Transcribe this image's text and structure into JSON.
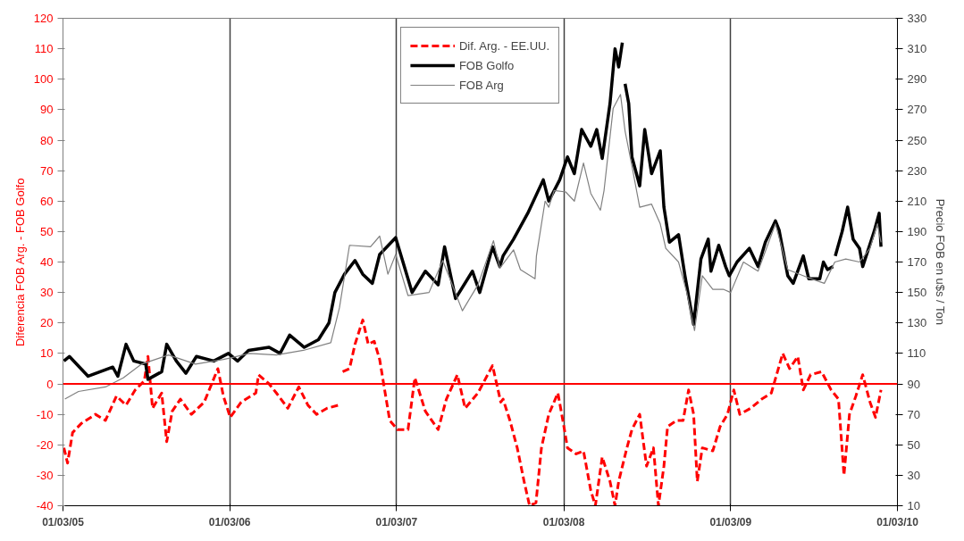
{
  "chart_data": {
    "type": "line",
    "ylabel": "Diferencia FOB Arg. - FOB Golfo",
    "y2label": "Precio FOB en u$s / Ton",
    "xlim": [
      "2005-03-01",
      "2010-03-01"
    ],
    "xticks": [
      {
        "value": "2005-03-01",
        "label": "01/03/05"
      },
      {
        "value": "2006-03-01",
        "label": "01/03/06"
      },
      {
        "value": "2007-03-01",
        "label": "01/03/07"
      },
      {
        "value": "2008-03-01",
        "label": "01/03/08"
      },
      {
        "value": "2009-03-01",
        "label": "01/03/09"
      },
      {
        "value": "2010-03-01",
        "label": "01/03/10"
      }
    ],
    "ylim": [
      -40,
      120
    ],
    "yticks": [
      -40,
      -30,
      -20,
      -10,
      0,
      10,
      20,
      30,
      40,
      50,
      60,
      70,
      80,
      90,
      100,
      110,
      120
    ],
    "y2lim": [
      10,
      330
    ],
    "y2ticks": [
      10,
      30,
      50,
      70,
      90,
      110,
      130,
      150,
      170,
      190,
      210,
      230,
      250,
      270,
      290,
      310,
      330
    ],
    "grid": "x",
    "legend": "top",
    "ref_lines": [
      {
        "axis": "y",
        "value": 0,
        "color": "#ff0000"
      }
    ],
    "series": [
      {
        "name": "Dif. Arg. - EE.UU.",
        "color": "#ff0000",
        "line_style": "dashed",
        "x": [
          "2005-03-03",
          "2005-03-11",
          "2005-03-22",
          "2005-04-10",
          "2005-05-11",
          "2005-06-02",
          "2005-06-26",
          "2005-07-17",
          "2005-08-06",
          "2005-08-26",
          "2005-09-03",
          "2005-09-13",
          "2005-10-03",
          "2005-10-14",
          "2005-10-26",
          "2005-11-13",
          "2005-12-07",
          "2006-01-04",
          "2006-02-03",
          "2006-02-15",
          "2006-03-02",
          "2006-03-26",
          "2006-04-27",
          "2006-05-03",
          "2006-05-26",
          "2006-06-11",
          "2006-07-06",
          "2006-07-30",
          "2006-08-19",
          "2006-09-07",
          "2006-09-30",
          "2006-10-25",
          "2006-10-28",
          "2006-11-03",
          "2006-11-18",
          "2006-11-30",
          "2006-12-17",
          "2006-12-29",
          "2007-01-11",
          "2007-01-23",
          "2007-02-04",
          "2007-02-14",
          "2007-03-03",
          "2007-03-26",
          "2007-04-10",
          "2007-05-03",
          "2007-05-31",
          "2007-06-18",
          "2007-07-12",
          "2007-07-29",
          "2007-08-26",
          "2007-09-27",
          "2007-10-15",
          "2007-10-20",
          "2007-11-04",
          "2007-11-20",
          "2007-12-05",
          "2007-12-17",
          "2007-12-31",
          "2008-01-12",
          "2008-01-28",
          "2008-02-17",
          "2008-02-29",
          "2008-03-09",
          "2008-03-28",
          "2008-04-13",
          "2008-04-29",
          "2008-05-09",
          "2008-05-24",
          "2008-06-10",
          "2008-06-21",
          "2008-06-29",
          "2008-07-17",
          "2008-07-28",
          "2008-08-14",
          "2008-08-29",
          "2008-09-13",
          "2008-09-24",
          "2008-10-06",
          "2008-10-14",
          "2008-11-03",
          "2008-11-17",
          "2008-11-29",
          "2008-12-10",
          "2008-12-18",
          "2008-12-29",
          "2009-01-21",
          "2009-02-06",
          "2009-02-22",
          "2009-03-08",
          "2009-03-21",
          "2009-04-14",
          "2009-05-08",
          "2009-05-29",
          "2009-06-23",
          "2009-07-08",
          "2009-07-26",
          "2009-08-07",
          "2009-08-23",
          "2009-09-16",
          "2009-10-07",
          "2009-10-23",
          "2009-11-04",
          "2009-11-16",
          "2009-11-30",
          "2009-12-15",
          "2009-12-31",
          "2010-01-12",
          "2010-01-24"
        ],
        "values": [
          -21,
          -26,
          -16,
          -13,
          -10,
          -12,
          -4,
          -7,
          -2,
          1,
          9,
          -8,
          -3,
          -19,
          -9,
          -5,
          -10,
          -6,
          5,
          -4,
          -11,
          -6,
          -3,
          3,
          0,
          -3,
          -8,
          -1,
          -7,
          -10,
          -8,
          -7,
          null,
          4,
          5,
          13,
          21,
          13,
          14,
          8,
          -3,
          -12,
          -15,
          -15,
          2,
          -9,
          -15,
          -5,
          3,
          -8,
          -3,
          6,
          -6,
          -5,
          -12,
          -21,
          -32,
          -40,
          -39,
          -21,
          -10,
          -3,
          -13,
          -21,
          -23,
          -22,
          -35,
          -40,
          -24,
          -32,
          -40,
          -32,
          -21,
          -15,
          -10,
          -27,
          -21,
          -40,
          -27,
          -14,
          -12,
          -12,
          -2,
          -10,
          -32,
          -21,
          -22,
          -14,
          -10,
          -2,
          -10,
          -8,
          -5,
          -3,
          10,
          5,
          9,
          -2,
          3,
          4,
          -2,
          -5,
          -30,
          -10,
          -4,
          3,
          -6,
          -11,
          -2
        ]
      },
      {
        "name": "FOB Golfo",
        "color": "#000000",
        "axis": "y2",
        "line_style": "solid",
        "x": [
          "2005-03-03",
          "2005-03-15",
          "2005-04-25",
          "2005-06-18",
          "2005-06-29",
          "2005-07-17",
          "2005-08-03",
          "2005-08-29",
          "2005-09-03",
          "2005-10-03",
          "2005-10-14",
          "2005-11-04",
          "2005-11-25",
          "2005-12-18",
          "2006-01-25",
          "2006-02-26",
          "2006-03-18",
          "2006-04-11",
          "2006-05-26",
          "2006-06-19",
          "2006-07-10",
          "2006-08-11",
          "2006-09-11",
          "2006-10-04",
          "2006-10-17",
          "2006-11-07",
          "2006-11-30",
          "2006-12-17",
          "2007-01-07",
          "2007-01-23",
          "2007-02-27",
          "2007-04-04",
          "2007-05-03",
          "2007-05-31",
          "2007-06-14",
          "2007-07-08",
          "2007-08-14",
          "2007-08-30",
          "2007-09-27",
          "2007-10-13",
          "2007-10-20",
          "2007-11-12",
          "2007-12-13",
          "2008-01-16",
          "2008-01-28",
          "2008-02-21",
          "2008-03-09",
          "2008-03-24",
          "2008-04-09",
          "2008-04-29",
          "2008-05-12",
          "2008-05-24",
          "2008-06-10",
          "2008-06-21",
          "2008-06-29",
          "2008-07-07",
          "2008-07-10",
          "2008-07-13",
          "2008-07-21",
          "2008-07-28",
          "2008-08-14",
          "2008-08-25",
          "2008-09-09",
          "2008-09-28",
          "2008-10-06",
          "2008-10-18",
          "2008-11-07",
          "2008-11-21",
          "2008-12-10",
          "2008-12-26",
          "2009-01-11",
          "2009-01-17",
          "2009-02-03",
          "2009-02-18",
          "2009-02-26",
          "2009-03-15",
          "2009-04-11",
          "2009-04-30",
          "2009-05-16",
          "2009-06-07",
          "2009-06-15",
          "2009-07-04",
          "2009-07-16",
          "2009-08-07",
          "2009-08-19",
          "2009-09-12",
          "2009-09-20",
          "2009-09-29",
          "2009-10-11",
          "2009-10-13",
          "2009-10-16",
          "2009-10-31",
          "2009-11-12",
          "2009-11-24",
          "2009-12-08",
          "2009-12-15",
          "2010-01-09",
          "2010-01-20",
          "2010-01-24"
        ],
        "values": [
          105,
          108,
          95,
          101,
          95,
          116,
          105,
          103,
          93,
          98,
          116,
          105,
          97,
          108,
          105,
          110,
          105,
          112,
          114,
          110,
          122,
          114,
          119,
          130,
          150,
          162,
          171,
          162,
          156,
          175,
          186,
          150,
          164,
          155,
          180,
          146,
          164,
          150,
          180,
          167,
          174,
          185,
          202,
          224,
          210,
          224,
          239,
          228,
          257,
          246,
          257,
          238,
          274,
          310,
          298,
          314,
          null,
          287,
          274,
          239,
          220,
          257,
          228,
          243,
          206,
          183,
          188,
          161,
          129,
          172,
          185,
          164,
          181,
          167,
          161,
          170,
          179,
          167,
          183,
          197,
          191,
          161,
          156,
          174,
          159,
          159,
          170,
          165,
          167,
          null,
          174,
          190,
          206,
          185,
          179,
          167,
          190,
          202,
          180
        ]
      },
      {
        "name": "FOB Arg",
        "color": "#808080",
        "axis": "y2",
        "line_style": "solid",
        "x": [
          "2005-03-05",
          "2005-04-04",
          "2005-06-02",
          "2005-07-11",
          "2005-08-20",
          "2005-10-18",
          "2005-12-16",
          "2006-02-15",
          "2006-04-13",
          "2006-06-11",
          "2006-08-09",
          "2006-10-08",
          "2006-10-27",
          "2006-11-18",
          "2007-01-03",
          "2007-01-23",
          "2007-02-10",
          "2007-02-27",
          "2007-03-26",
          "2007-05-11",
          "2007-06-10",
          "2007-07-23",
          "2007-08-26",
          "2007-09-29",
          "2007-10-13",
          "2007-11-12",
          "2007-11-27",
          "2007-12-29",
          "2008-01-01",
          "2008-01-20",
          "2008-01-28",
          "2008-02-09",
          "2008-03-05",
          "2008-03-24",
          "2008-04-13",
          "2008-04-29",
          "2008-05-20",
          "2008-05-28",
          "2008-06-17",
          "2008-07-03",
          "2008-07-13",
          "2008-07-28",
          "2008-08-14",
          "2008-09-09",
          "2008-09-28",
          "2008-10-10",
          "2008-11-07",
          "2008-11-25",
          "2008-12-12",
          "2008-12-29",
          "2009-01-21",
          "2009-02-14",
          "2009-03-01",
          "2009-03-29",
          "2009-04-30",
          "2009-06-07",
          "2009-07-04",
          "2009-08-15",
          "2009-09-22",
          "2009-10-15",
          "2009-11-08",
          "2009-12-08",
          "2009-12-31",
          "2010-01-16",
          "2010-01-24"
        ],
        "values": [
          80,
          85,
          88,
          94,
          103,
          109,
          103,
          106,
          110,
          109,
          112,
          117,
          140,
          181,
          180,
          187,
          162,
          175,
          148,
          150,
          171,
          138,
          155,
          184,
          166,
          178,
          165,
          159,
          174,
          210,
          206,
          217,
          216,
          210,
          235,
          215,
          204,
          217,
          271,
          280,
          256,
          233,
          206,
          208,
          195,
          179,
          170,
          150,
          125,
          161,
          152,
          152,
          150,
          170,
          164,
          195,
          165,
          160,
          156,
          170,
          172,
          170,
          179,
          195,
          183
        ]
      }
    ]
  }
}
